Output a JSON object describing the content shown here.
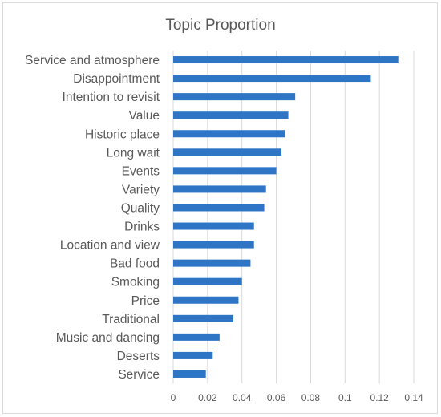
{
  "chart_data": {
    "type": "bar",
    "orientation": "horizontal",
    "title": "Topic Proportion",
    "xlabel": "",
    "ylabel": "",
    "categories": [
      "Service and atmosphere",
      "Disappointment",
      "Intention to revisit",
      "Value",
      "Historic place",
      "Long wait",
      "Events",
      "Variety",
      "Quality",
      "Drinks",
      "Location and view",
      "Bad food",
      "Smoking",
      "Price",
      "Traditional",
      "Music and dancing",
      "Deserts",
      "Service"
    ],
    "values": [
      0.131,
      0.115,
      0.071,
      0.067,
      0.065,
      0.063,
      0.06,
      0.054,
      0.053,
      0.047,
      0.047,
      0.045,
      0.04,
      0.038,
      0.035,
      0.027,
      0.023,
      0.019
    ],
    "xlim": [
      0,
      0.14
    ],
    "xticks": [
      0,
      0.02,
      0.04,
      0.06,
      0.08,
      0.1,
      0.12,
      0.14
    ],
    "xtick_labels": [
      "0",
      "0.02",
      "0.04",
      "0.06",
      "0.08",
      "0.1",
      "0.12",
      "0.14"
    ],
    "grid": "vertical",
    "legend": "none",
    "bar_color": "#2e75c6",
    "grid_color": "#d9d9d9"
  }
}
